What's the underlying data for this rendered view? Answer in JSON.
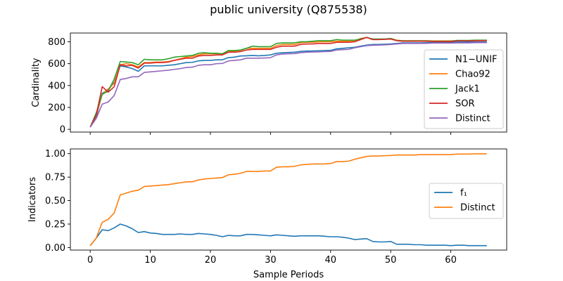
{
  "figure": {
    "title": "public university (Q875538)"
  },
  "chart_data": [
    {
      "type": "line",
      "ylabel": "Cardinality",
      "xlabel": "",
      "xlim": [
        -3.3,
        69.3
      ],
      "ylim": [
        -25,
        880
      ],
      "xticks": [
        0,
        10,
        20,
        30,
        40,
        50,
        60
      ],
      "yticks": [
        0,
        200,
        400,
        600,
        800
      ],
      "grid": false,
      "legend_position": "right",
      "x": [
        0,
        1,
        2,
        3,
        4,
        5,
        6,
        7,
        8,
        9,
        10,
        11,
        12,
        13,
        14,
        15,
        16,
        17,
        18,
        19,
        20,
        21,
        22,
        23,
        24,
        25,
        26,
        27,
        28,
        29,
        30,
        31,
        32,
        33,
        34,
        35,
        36,
        37,
        38,
        39,
        40,
        41,
        42,
        43,
        44,
        45,
        46,
        47,
        48,
        49,
        50,
        51,
        52,
        53,
        54,
        55,
        56,
        57,
        58,
        59,
        60,
        61,
        62,
        63,
        64,
        65,
        66
      ],
      "series": [
        {
          "name": "N1−UNIF",
          "color": "#1f77b4",
          "values": [
            20,
            110,
            330,
            360,
            430,
            580,
            570,
            555,
            530,
            580,
            580,
            580,
            580,
            585,
            590,
            600,
            610,
            612,
            625,
            630,
            630,
            635,
            635,
            655,
            660,
            670,
            672,
            675,
            672,
            675,
            680,
            695,
            700,
            702,
            705,
            712,
            715,
            716,
            718,
            720,
            722,
            735,
            740,
            745,
            750,
            760,
            770,
            775,
            775,
            778,
            780,
            785,
            790,
            790,
            790,
            790,
            792,
            793,
            795,
            795,
            795,
            797,
            797,
            798,
            798,
            798,
            798
          ]
        },
        {
          "name": "Chao92",
          "color": "#ff7f0e",
          "values": [
            20,
            130,
            320,
            370,
            420,
            590,
            600,
            590,
            570,
            610,
            610,
            615,
            615,
            620,
            630,
            645,
            660,
            665,
            680,
            690,
            690,
            690,
            690,
            715,
            715,
            720,
            740,
            740,
            740,
            740,
            740,
            765,
            775,
            775,
            775,
            790,
            795,
            795,
            800,
            800,
            800,
            805,
            805,
            805,
            810,
            830,
            840,
            820,
            820,
            825,
            830,
            815,
            810,
            810,
            810,
            810,
            810,
            808,
            808,
            808,
            808,
            810,
            810,
            810,
            810,
            812,
            812
          ]
        },
        {
          "name": "Jack1",
          "color": "#2ca02c",
          "values": [
            20,
            150,
            320,
            350,
            460,
            620,
            615,
            610,
            590,
            640,
            635,
            635,
            635,
            645,
            660,
            665,
            670,
            675,
            695,
            700,
            695,
            695,
            690,
            720,
            720,
            725,
            740,
            760,
            755,
            755,
            755,
            785,
            790,
            790,
            790,
            800,
            800,
            805,
            810,
            810,
            810,
            820,
            815,
            815,
            815,
            825,
            840,
            825,
            825,
            825,
            830,
            812,
            808,
            808,
            808,
            808,
            808,
            805,
            805,
            805,
            805,
            812,
            812,
            812,
            815,
            815,
            815
          ]
        },
        {
          "name": "SOR",
          "color": "#d62728",
          "values": [
            20,
            130,
            390,
            340,
            390,
            590,
            580,
            585,
            560,
            605,
            605,
            610,
            610,
            615,
            630,
            640,
            650,
            650,
            670,
            675,
            675,
            680,
            680,
            705,
            705,
            710,
            725,
            730,
            730,
            730,
            730,
            750,
            760,
            760,
            760,
            775,
            780,
            780,
            785,
            785,
            785,
            795,
            795,
            795,
            800,
            820,
            840,
            820,
            820,
            822,
            825,
            810,
            805,
            805,
            805,
            805,
            805,
            802,
            802,
            802,
            802,
            808,
            808,
            808,
            810,
            810,
            810
          ]
        },
        {
          "name": "Distinct",
          "color": "#9467bd",
          "values": [
            20,
            100,
            230,
            250,
            310,
            455,
            465,
            480,
            480,
            520,
            525,
            530,
            535,
            540,
            548,
            555,
            565,
            568,
            585,
            590,
            590,
            600,
            602,
            625,
            630,
            635,
            650,
            650,
            650,
            652,
            655,
            680,
            688,
            690,
            692,
            700,
            705,
            706,
            708,
            710,
            712,
            725,
            728,
            730,
            745,
            755,
            765,
            768,
            770,
            772,
            775,
            780,
            785,
            785,
            785,
            785,
            786,
            788,
            788,
            788,
            788,
            790,
            790,
            790,
            792,
            792,
            792
          ]
        }
      ]
    },
    {
      "type": "line",
      "ylabel": "Indicators",
      "xlabel": "Sample Periods",
      "xlim": [
        -3.3,
        69.3
      ],
      "ylim": [
        -0.027,
        1.05
      ],
      "xticks": [
        0,
        10,
        20,
        30,
        40,
        50,
        60
      ],
      "yticks": [
        0.0,
        0.25,
        0.5,
        0.75,
        1.0
      ],
      "ytick_labels": [
        "0.00",
        "0.25",
        "0.50",
        "0.75",
        "1.00"
      ],
      "grid": false,
      "legend_position": "right",
      "x": [
        0,
        1,
        2,
        3,
        4,
        5,
        6,
        7,
        8,
        9,
        10,
        11,
        12,
        13,
        14,
        15,
        16,
        17,
        18,
        19,
        20,
        21,
        22,
        23,
        24,
        25,
        26,
        27,
        28,
        29,
        30,
        31,
        32,
        33,
        34,
        35,
        36,
        37,
        38,
        39,
        40,
        41,
        42,
        43,
        44,
        45,
        46,
        47,
        48,
        49,
        50,
        51,
        52,
        53,
        54,
        55,
        56,
        57,
        58,
        59,
        60,
        61,
        62,
        63,
        64,
        65,
        66
      ],
      "series": [
        {
          "name": "f₁",
          "color": "#1f77b4",
          "values": [
            0.02,
            0.1,
            0.19,
            0.18,
            0.21,
            0.25,
            0.23,
            0.2,
            0.16,
            0.17,
            0.155,
            0.15,
            0.14,
            0.14,
            0.14,
            0.145,
            0.14,
            0.14,
            0.15,
            0.145,
            0.14,
            0.13,
            0.115,
            0.13,
            0.125,
            0.125,
            0.14,
            0.14,
            0.135,
            0.13,
            0.125,
            0.135,
            0.13,
            0.125,
            0.12,
            0.125,
            0.125,
            0.125,
            0.125,
            0.12,
            0.115,
            0.115,
            0.11,
            0.1,
            0.085,
            0.09,
            0.095,
            0.065,
            0.06,
            0.06,
            0.065,
            0.035,
            0.035,
            0.035,
            0.03,
            0.03,
            0.025,
            0.025,
            0.025,
            0.025,
            0.02,
            0.025,
            0.025,
            0.02,
            0.02,
            0.02,
            0.02
          ]
        },
        {
          "name": "Distinct",
          "color": "#ff7f0e",
          "values": [
            0.02,
            0.1,
            0.27,
            0.3,
            0.37,
            0.56,
            0.58,
            0.6,
            0.61,
            0.65,
            0.655,
            0.66,
            0.665,
            0.67,
            0.68,
            0.69,
            0.7,
            0.7,
            0.72,
            0.73,
            0.735,
            0.74,
            0.745,
            0.775,
            0.78,
            0.79,
            0.81,
            0.81,
            0.81,
            0.815,
            0.815,
            0.855,
            0.86,
            0.86,
            0.865,
            0.88,
            0.885,
            0.89,
            0.89,
            0.89,
            0.895,
            0.915,
            0.915,
            0.92,
            0.94,
            0.955,
            0.97,
            0.975,
            0.975,
            0.978,
            0.98,
            0.985,
            0.985,
            0.985,
            0.985,
            0.99,
            0.99,
            0.99,
            0.99,
            0.99,
            0.99,
            0.995,
            0.995,
            0.995,
            0.998,
            0.998,
            0.998
          ]
        }
      ]
    }
  ]
}
